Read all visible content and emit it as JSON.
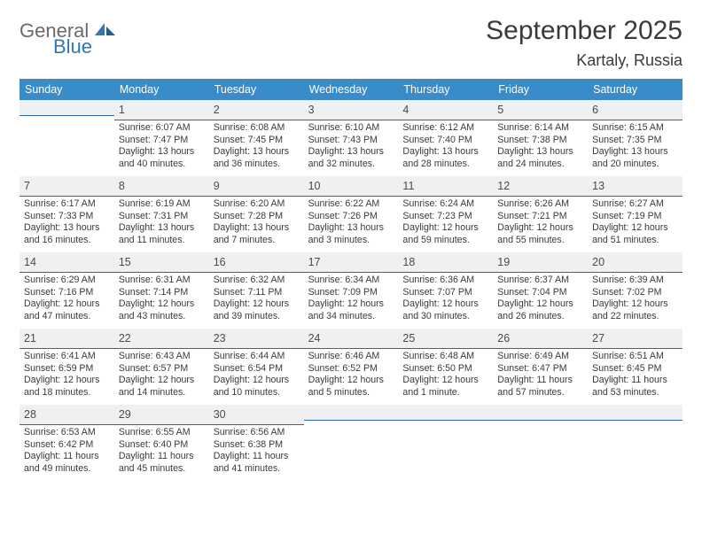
{
  "brand": {
    "word1": "General",
    "word2": "Blue"
  },
  "title": "September 2025",
  "location": "Kartaly, Russia",
  "colors": {
    "header_bg": "#3a8bc9",
    "header_text": "#ffffff",
    "daynum_bg": "#eef0f2",
    "daynum_border": "#2a6aa0",
    "body_text": "#3a3a3a",
    "logo_gray": "#6a6a6a",
    "logo_blue": "#2e77b8",
    "background": "#ffffff"
  },
  "typography": {
    "title_fontsize": 30,
    "location_fontsize": 18,
    "dow_fontsize": 12.5,
    "daynum_fontsize": 12.5,
    "body_fontsize": 10.6
  },
  "dow": [
    "Sunday",
    "Monday",
    "Tuesday",
    "Wednesday",
    "Thursday",
    "Friday",
    "Saturday"
  ],
  "weeks": [
    [
      {
        "n": "",
        "sr": "",
        "ss": "",
        "dl": ""
      },
      {
        "n": "1",
        "sr": "Sunrise: 6:07 AM",
        "ss": "Sunset: 7:47 PM",
        "dl": "Daylight: 13 hours and 40 minutes."
      },
      {
        "n": "2",
        "sr": "Sunrise: 6:08 AM",
        "ss": "Sunset: 7:45 PM",
        "dl": "Daylight: 13 hours and 36 minutes."
      },
      {
        "n": "3",
        "sr": "Sunrise: 6:10 AM",
        "ss": "Sunset: 7:43 PM",
        "dl": "Daylight: 13 hours and 32 minutes."
      },
      {
        "n": "4",
        "sr": "Sunrise: 6:12 AM",
        "ss": "Sunset: 7:40 PM",
        "dl": "Daylight: 13 hours and 28 minutes."
      },
      {
        "n": "5",
        "sr": "Sunrise: 6:14 AM",
        "ss": "Sunset: 7:38 PM",
        "dl": "Daylight: 13 hours and 24 minutes."
      },
      {
        "n": "6",
        "sr": "Sunrise: 6:15 AM",
        "ss": "Sunset: 7:35 PM",
        "dl": "Daylight: 13 hours and 20 minutes."
      }
    ],
    [
      {
        "n": "7",
        "sr": "Sunrise: 6:17 AM",
        "ss": "Sunset: 7:33 PM",
        "dl": "Daylight: 13 hours and 16 minutes."
      },
      {
        "n": "8",
        "sr": "Sunrise: 6:19 AM",
        "ss": "Sunset: 7:31 PM",
        "dl": "Daylight: 13 hours and 11 minutes."
      },
      {
        "n": "9",
        "sr": "Sunrise: 6:20 AM",
        "ss": "Sunset: 7:28 PM",
        "dl": "Daylight: 13 hours and 7 minutes."
      },
      {
        "n": "10",
        "sr": "Sunrise: 6:22 AM",
        "ss": "Sunset: 7:26 PM",
        "dl": "Daylight: 13 hours and 3 minutes."
      },
      {
        "n": "11",
        "sr": "Sunrise: 6:24 AM",
        "ss": "Sunset: 7:23 PM",
        "dl": "Daylight: 12 hours and 59 minutes."
      },
      {
        "n": "12",
        "sr": "Sunrise: 6:26 AM",
        "ss": "Sunset: 7:21 PM",
        "dl": "Daylight: 12 hours and 55 minutes."
      },
      {
        "n": "13",
        "sr": "Sunrise: 6:27 AM",
        "ss": "Sunset: 7:19 PM",
        "dl": "Daylight: 12 hours and 51 minutes."
      }
    ],
    [
      {
        "n": "14",
        "sr": "Sunrise: 6:29 AM",
        "ss": "Sunset: 7:16 PM",
        "dl": "Daylight: 12 hours and 47 minutes."
      },
      {
        "n": "15",
        "sr": "Sunrise: 6:31 AM",
        "ss": "Sunset: 7:14 PM",
        "dl": "Daylight: 12 hours and 43 minutes."
      },
      {
        "n": "16",
        "sr": "Sunrise: 6:32 AM",
        "ss": "Sunset: 7:11 PM",
        "dl": "Daylight: 12 hours and 39 minutes."
      },
      {
        "n": "17",
        "sr": "Sunrise: 6:34 AM",
        "ss": "Sunset: 7:09 PM",
        "dl": "Daylight: 12 hours and 34 minutes."
      },
      {
        "n": "18",
        "sr": "Sunrise: 6:36 AM",
        "ss": "Sunset: 7:07 PM",
        "dl": "Daylight: 12 hours and 30 minutes."
      },
      {
        "n": "19",
        "sr": "Sunrise: 6:37 AM",
        "ss": "Sunset: 7:04 PM",
        "dl": "Daylight: 12 hours and 26 minutes."
      },
      {
        "n": "20",
        "sr": "Sunrise: 6:39 AM",
        "ss": "Sunset: 7:02 PM",
        "dl": "Daylight: 12 hours and 22 minutes."
      }
    ],
    [
      {
        "n": "21",
        "sr": "Sunrise: 6:41 AM",
        "ss": "Sunset: 6:59 PM",
        "dl": "Daylight: 12 hours and 18 minutes."
      },
      {
        "n": "22",
        "sr": "Sunrise: 6:43 AM",
        "ss": "Sunset: 6:57 PM",
        "dl": "Daylight: 12 hours and 14 minutes."
      },
      {
        "n": "23",
        "sr": "Sunrise: 6:44 AM",
        "ss": "Sunset: 6:54 PM",
        "dl": "Daylight: 12 hours and 10 minutes."
      },
      {
        "n": "24",
        "sr": "Sunrise: 6:46 AM",
        "ss": "Sunset: 6:52 PM",
        "dl": "Daylight: 12 hours and 5 minutes."
      },
      {
        "n": "25",
        "sr": "Sunrise: 6:48 AM",
        "ss": "Sunset: 6:50 PM",
        "dl": "Daylight: 12 hours and 1 minute."
      },
      {
        "n": "26",
        "sr": "Sunrise: 6:49 AM",
        "ss": "Sunset: 6:47 PM",
        "dl": "Daylight: 11 hours and 57 minutes."
      },
      {
        "n": "27",
        "sr": "Sunrise: 6:51 AM",
        "ss": "Sunset: 6:45 PM",
        "dl": "Daylight: 11 hours and 53 minutes."
      }
    ],
    [
      {
        "n": "28",
        "sr": "Sunrise: 6:53 AM",
        "ss": "Sunset: 6:42 PM",
        "dl": "Daylight: 11 hours and 49 minutes."
      },
      {
        "n": "29",
        "sr": "Sunrise: 6:55 AM",
        "ss": "Sunset: 6:40 PM",
        "dl": "Daylight: 11 hours and 45 minutes."
      },
      {
        "n": "30",
        "sr": "Sunrise: 6:56 AM",
        "ss": "Sunset: 6:38 PM",
        "dl": "Daylight: 11 hours and 41 minutes."
      },
      {
        "n": "",
        "sr": "",
        "ss": "",
        "dl": ""
      },
      {
        "n": "",
        "sr": "",
        "ss": "",
        "dl": ""
      },
      {
        "n": "",
        "sr": "",
        "ss": "",
        "dl": ""
      },
      {
        "n": "",
        "sr": "",
        "ss": "",
        "dl": ""
      }
    ]
  ]
}
